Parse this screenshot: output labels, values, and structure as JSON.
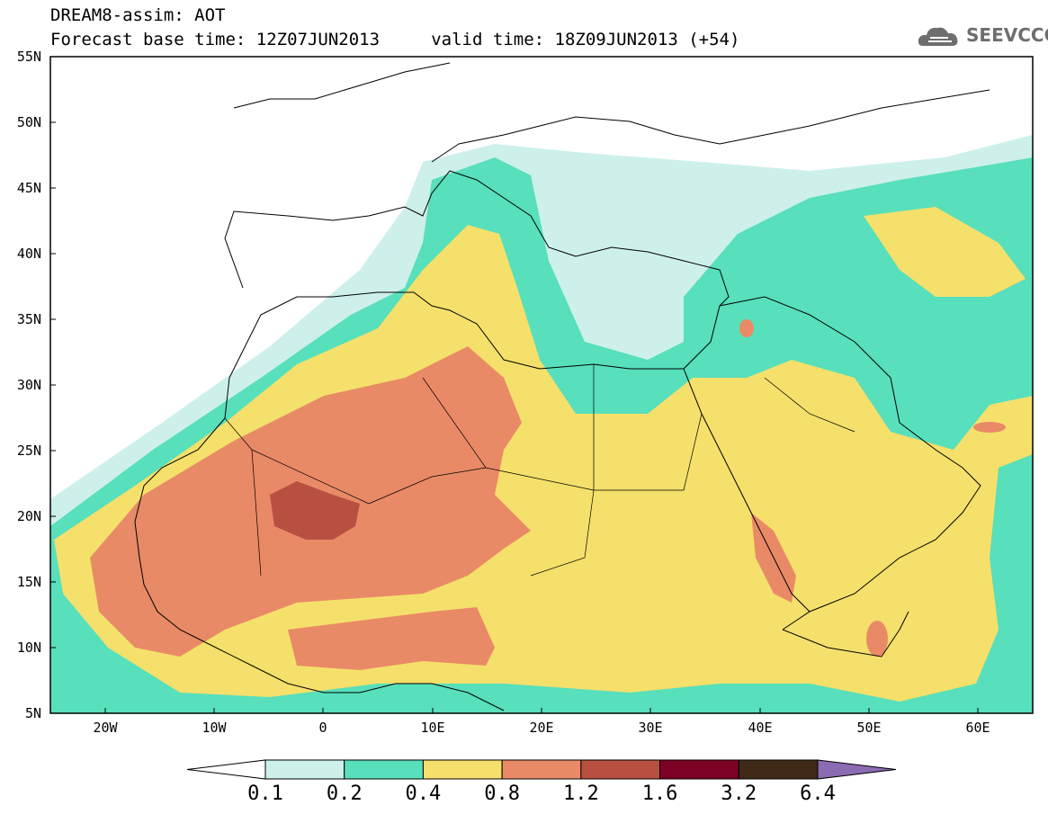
{
  "header": {
    "line1": "DREAM8-assim: AOT",
    "line2": "Forecast base time: 12Z07JUN2013     valid time: 18Z09JUN2013 (+54)"
  },
  "logo": {
    "text": "SEEVCCC",
    "icon": "cloud-icon"
  },
  "map": {
    "lat_labels": [
      "55N",
      "50N",
      "45N",
      "40N",
      "35N",
      "30N",
      "25N",
      "20N",
      "15N",
      "10N",
      "5N"
    ],
    "lon_labels": [
      "20W",
      "10W",
      "0",
      "10E",
      "20E",
      "30E",
      "40E",
      "50E",
      "60E"
    ],
    "lon_range": [
      -25,
      65
    ],
    "lat_range": [
      5,
      55
    ]
  },
  "legend": {
    "labels": [
      "0.1",
      "0.2",
      "0.4",
      "0.8",
      "1.2",
      "1.6",
      "3.2",
      "6.4"
    ],
    "colors": [
      "#ffffff",
      "#cdf0eb",
      "#58dfbb",
      "#f5e06b",
      "#e98a66",
      "#b85042",
      "#7d0025",
      "#3f2a17",
      "#8b6bb1"
    ]
  }
}
